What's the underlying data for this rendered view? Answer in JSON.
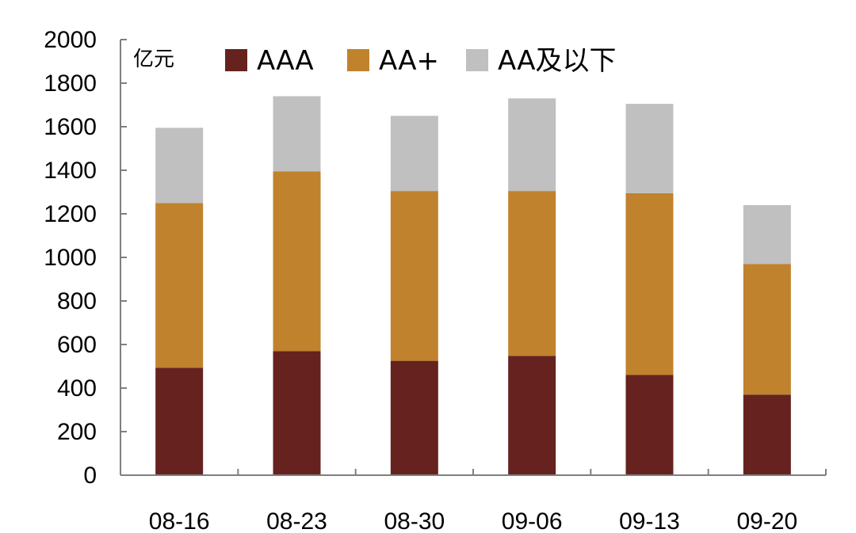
{
  "chart_data": {
    "type": "bar",
    "stacked": true,
    "unit_label": "亿元",
    "categories": [
      "08-16",
      "08-23",
      "08-30",
      "09-06",
      "09-13",
      "09-20"
    ],
    "series": [
      {
        "name": "AAA",
        "color": "#65221f",
        "values": [
          493,
          570,
          525,
          548,
          460,
          370
        ]
      },
      {
        "name": "AA+",
        "color": "#c0822d",
        "values": [
          757,
          825,
          780,
          757,
          835,
          600
        ]
      },
      {
        "name": "AA及以下",
        "color": "#c0c0c0",
        "values": [
          345,
          345,
          345,
          425,
          410,
          270
        ]
      }
    ],
    "ylim": [
      0,
      2000
    ],
    "yticks": [
      0,
      200,
      400,
      600,
      800,
      1000,
      1200,
      1400,
      1600,
      1800,
      2000
    ],
    "grid": false,
    "legend_position": "top"
  }
}
